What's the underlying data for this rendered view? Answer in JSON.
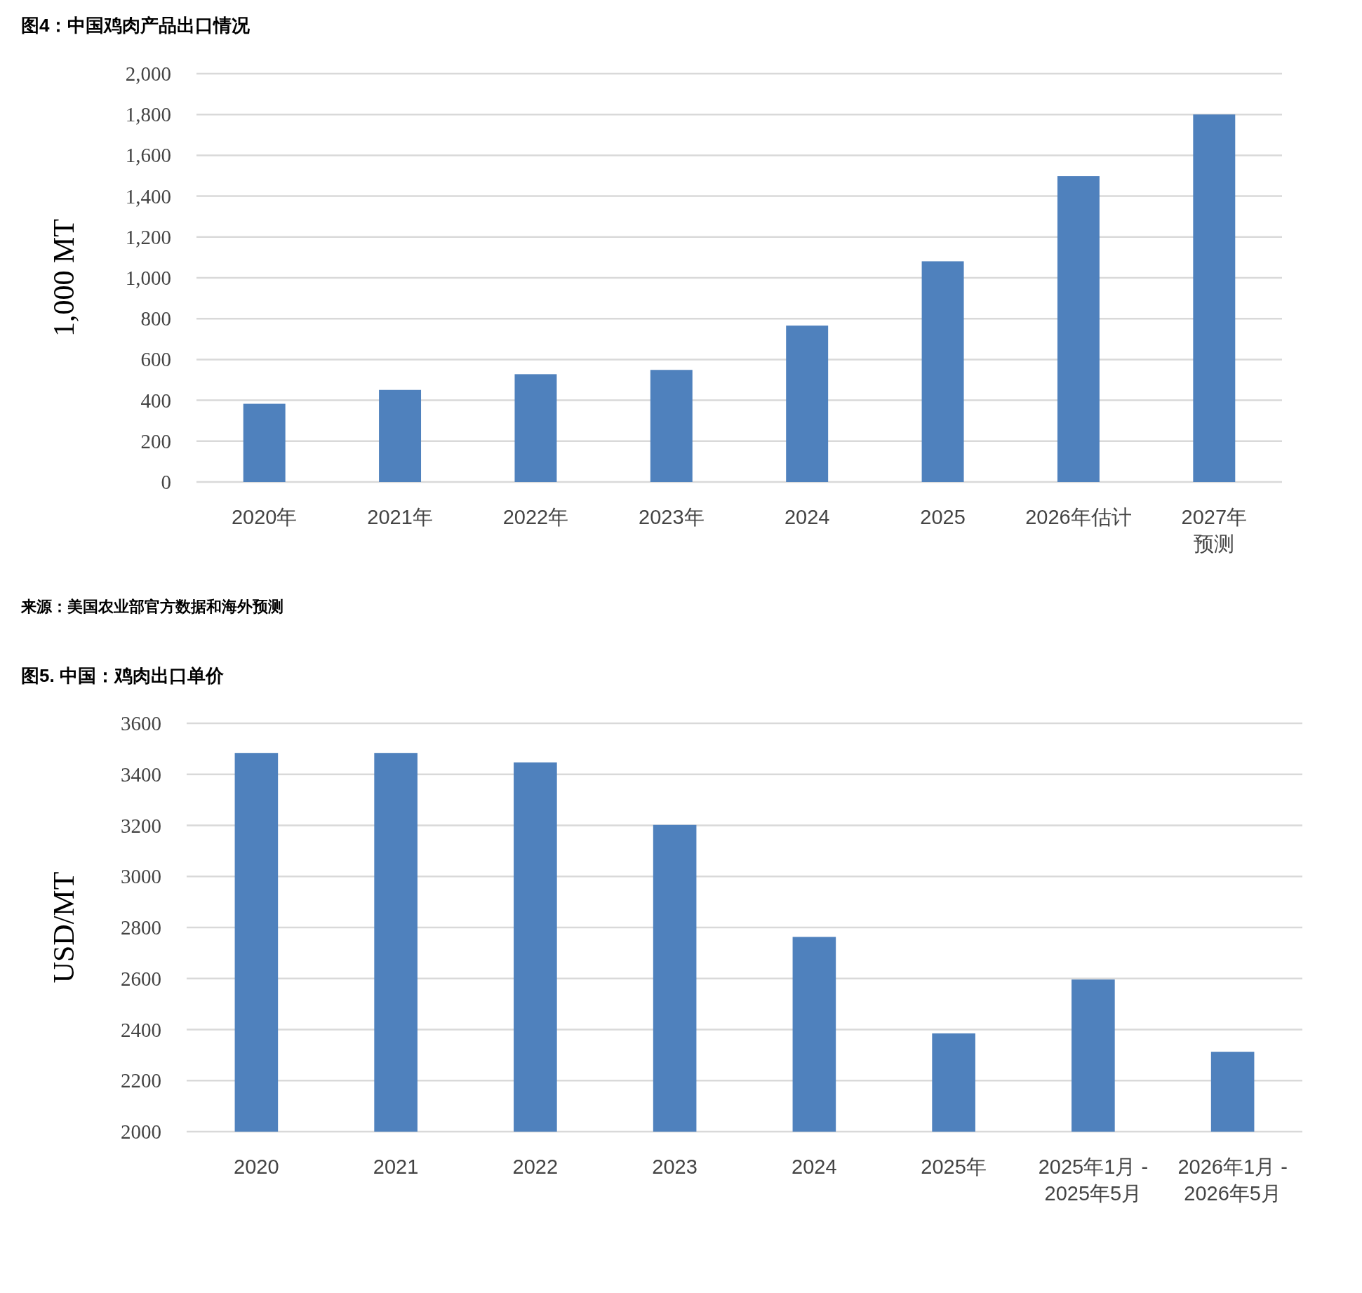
{
  "chart_data": [
    {
      "type": "bar",
      "title": "图4：中国鸡肉产品出口情况",
      "ylabel": "1,000 MT",
      "categories": [
        "2020年",
        "2021年",
        "2022年",
        "2023年",
        "2024",
        "2025",
        "2026年估计",
        "2027年预测"
      ],
      "values": [
        383,
        451,
        528,
        549,
        766,
        1081,
        1498,
        1800
      ],
      "color": "#4f81bd",
      "ylim": [
        0,
        2000
      ],
      "yticks": [
        0,
        200,
        400,
        600,
        800,
        {
          "value": 1000,
          "label": "1,000"
        },
        {
          "value": 1200,
          "label": "1,200"
        },
        {
          "value": 1400,
          "label": "1,400"
        },
        {
          "value": 1600,
          "label": "1,600"
        },
        {
          "value": 1800,
          "label": "1,800"
        },
        {
          "value": 2000,
          "label": "2,000"
        }
      ],
      "grid": "y",
      "annotations": [
        "来源：美国农业部官方数据和海外预测"
      ]
    },
    {
      "type": "bar",
      "title": "图5. 中国：鸡肉出口单价",
      "ylabel": "USD/MT",
      "categories": [
        "2020",
        "2021",
        "2022",
        "2023",
        "2024",
        "2025年",
        "2025年1月 -\n2025年5月",
        "2026年1月 -\n2026年5月"
      ],
      "values": [
        3484,
        3484,
        3447,
        3202,
        2763,
        2385,
        2596,
        2313
      ],
      "color": "#4f81bd",
      "ylim": [
        2000,
        3600
      ],
      "yticks": [
        2000,
        2200,
        2400,
        2600,
        2800,
        3000,
        3200,
        3400,
        3600
      ],
      "grid": "y"
    }
  ]
}
